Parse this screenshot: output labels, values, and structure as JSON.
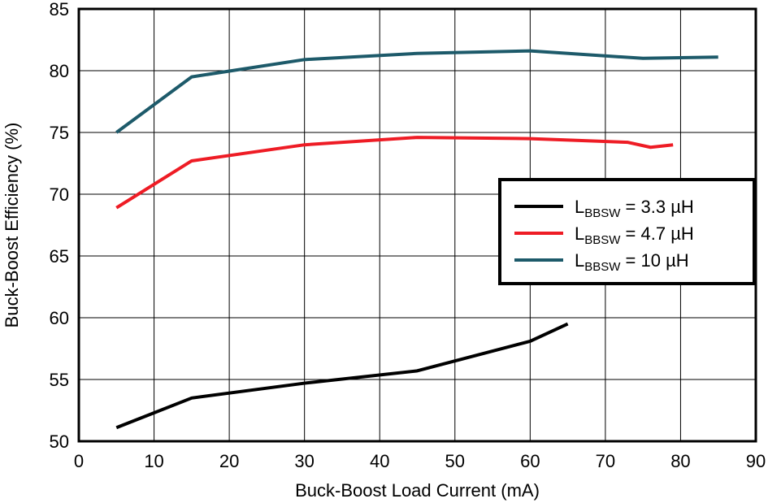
{
  "chart_data": {
    "type": "line",
    "xlabel": "Buck-Boost Load Current (mA)",
    "ylabel": "Buck-Boost Efficiency (%)",
    "xlim": [
      0,
      90
    ],
    "ylim": [
      50,
      85
    ],
    "xticks": [
      "0",
      "10",
      "20",
      "30",
      "40",
      "50",
      "60",
      "70",
      "80",
      "90"
    ],
    "yticks": [
      "50",
      "55",
      "60",
      "65",
      "70",
      "75",
      "80",
      "85"
    ],
    "grid": true,
    "legend_position": "right",
    "series": [
      {
        "name": "L",
        "name_sub": "BBSW",
        "name_rest": " = 3.3 µH",
        "color": "#000000",
        "x": [
          5,
          15,
          30,
          45,
          60,
          65
        ],
        "y": [
          51.1,
          53.5,
          54.7,
          55.7,
          58.1,
          59.5
        ]
      },
      {
        "name": "L",
        "name_sub": "BBSW",
        "name_rest": " = 4.7 µH",
        "color": "#ee1c25",
        "x": [
          5,
          15,
          30,
          45,
          60,
          73,
          76,
          79
        ],
        "y": [
          68.9,
          72.7,
          74.0,
          74.6,
          74.5,
          74.2,
          73.8,
          74.0
        ]
      },
      {
        "name": "L",
        "name_sub": "BBSW",
        "name_rest": " = 10 µH",
        "color": "#1d5a6a",
        "x": [
          5,
          15,
          30,
          45,
          60,
          75,
          85
        ],
        "y": [
          75.0,
          79.5,
          80.9,
          81.4,
          81.6,
          81.0,
          81.1
        ]
      }
    ]
  }
}
